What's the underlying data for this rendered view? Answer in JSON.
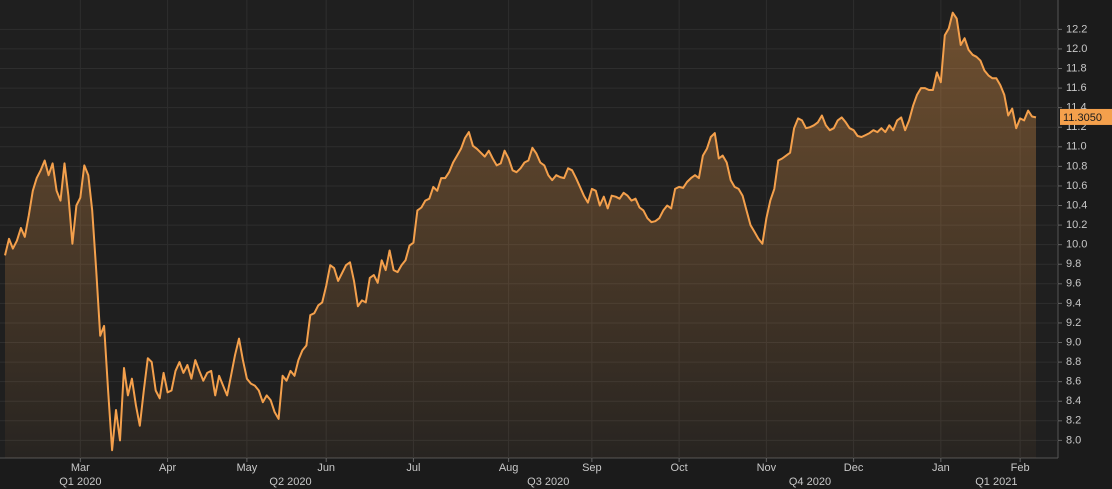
{
  "chart_data": {
    "type": "line",
    "series": [
      {
        "color": "#f4a04c",
        "values": [
          9.89,
          10.06,
          9.96,
          10.04,
          10.17,
          10.08,
          10.3,
          10.55,
          10.68,
          10.76,
          10.86,
          10.71,
          10.83,
          10.55,
          10.45,
          10.83,
          10.5,
          10.01,
          10.4,
          10.48,
          10.81,
          10.71,
          10.35,
          9.74,
          9.07,
          9.17,
          8.51,
          7.9,
          8.31,
          8.0,
          8.74,
          8.46,
          8.63,
          8.36,
          8.15,
          8.51,
          8.84,
          8.8,
          8.51,
          8.43,
          8.69,
          8.49,
          8.51,
          8.71,
          8.8,
          8.69,
          8.77,
          8.63,
          8.82,
          8.71,
          8.61,
          8.69,
          8.71,
          8.46,
          8.66,
          8.56,
          8.46,
          8.66,
          8.87,
          9.04,
          8.82,
          8.63,
          8.58,
          8.56,
          8.51,
          8.39,
          8.46,
          8.41,
          8.29,
          8.22,
          8.66,
          8.61,
          8.71,
          8.66,
          8.82,
          8.92,
          8.97,
          9.28,
          9.3,
          9.38,
          9.41,
          9.58,
          9.79,
          9.76,
          9.63,
          9.71,
          9.79,
          9.82,
          9.63,
          9.37,
          9.43,
          9.41,
          9.66,
          9.69,
          9.61,
          9.84,
          9.74,
          9.94,
          9.74,
          9.72,
          9.79,
          9.84,
          9.99,
          10.02,
          10.35,
          10.38,
          10.45,
          10.47,
          10.59,
          10.55,
          10.68,
          10.68,
          10.74,
          10.84,
          10.91,
          10.98,
          11.09,
          11.15,
          11.01,
          10.98,
          10.94,
          10.9,
          10.96,
          10.88,
          10.81,
          10.83,
          10.96,
          10.88,
          10.76,
          10.74,
          10.78,
          10.84,
          10.86,
          10.99,
          10.93,
          10.84,
          10.81,
          10.71,
          10.66,
          10.71,
          10.69,
          10.68,
          10.78,
          10.76,
          10.68,
          10.59,
          10.5,
          10.43,
          10.57,
          10.55,
          10.4,
          10.49,
          10.37,
          10.5,
          10.49,
          10.47,
          10.53,
          10.5,
          10.45,
          10.47,
          10.38,
          10.35,
          10.27,
          10.23,
          10.24,
          10.27,
          10.35,
          10.4,
          10.37,
          10.57,
          10.59,
          10.58,
          10.64,
          10.68,
          10.71,
          10.68,
          10.91,
          10.98,
          11.1,
          11.14,
          10.88,
          10.91,
          10.84,
          10.66,
          10.59,
          10.57,
          10.5,
          10.35,
          10.2,
          10.13,
          10.06,
          10.01,
          10.27,
          10.45,
          10.57,
          10.86,
          10.88,
          10.91,
          10.94,
          11.19,
          11.29,
          11.27,
          11.19,
          11.2,
          11.22,
          11.25,
          11.32,
          11.22,
          11.17,
          11.19,
          11.27,
          11.3,
          11.25,
          11.19,
          11.17,
          11.11,
          11.1,
          11.12,
          11.14,
          11.17,
          11.15,
          11.19,
          11.15,
          11.22,
          11.17,
          11.27,
          11.3,
          11.17,
          11.27,
          11.42,
          11.53,
          11.6,
          11.6,
          11.58,
          11.58,
          11.76,
          11.66,
          12.14,
          12.21,
          12.37,
          12.31,
          12.04,
          12.11,
          11.99,
          11.94,
          11.92,
          11.88,
          11.78,
          11.73,
          11.7,
          11.7,
          11.63,
          11.53,
          11.32,
          11.39,
          11.19,
          11.29,
          11.27,
          11.37,
          11.31,
          11.3
        ]
      }
    ],
    "last_price": {
      "value": 11.305,
      "label": "11.3050"
    },
    "xlim": [
      0,
      260
    ],
    "xticks": [
      {
        "value": 19,
        "label": "Mar"
      },
      {
        "value": 41,
        "label": "Apr"
      },
      {
        "value": 61,
        "label": "May"
      },
      {
        "value": 81,
        "label": "Jun"
      },
      {
        "value": 103,
        "label": "Jul"
      },
      {
        "value": 127,
        "label": "Aug"
      },
      {
        "value": 148,
        "label": "Sep"
      },
      {
        "value": 170,
        "label": "Oct"
      },
      {
        "value": 192,
        "label": "Nov"
      },
      {
        "value": 214,
        "label": "Dec"
      },
      {
        "value": 236,
        "label": "Jan"
      },
      {
        "value": 256,
        "label": "Feb"
      }
    ],
    "quarter_ticks": [
      {
        "value": 19,
        "label": "Q1 2020"
      },
      {
        "value": 72,
        "label": "Q2 2020"
      },
      {
        "value": 137,
        "label": "Q3 2020"
      },
      {
        "value": 203,
        "label": "Q4 2020"
      },
      {
        "value": 250,
        "label": "Q1 2021"
      }
    ],
    "ylim": [
      7.82,
      12.5
    ],
    "yticks": [
      {
        "value": 8,
        "label": "8.0"
      },
      8.2,
      8.4,
      8.6,
      8.8,
      {
        "value": 9,
        "label": "9.0"
      },
      9.2,
      9.4,
      9.6,
      9.8,
      {
        "value": 10,
        "label": "10.0"
      },
      10.2,
      10.4,
      10.6,
      10.8,
      {
        "value": 11,
        "label": "11.0"
      },
      11.2,
      11.4,
      11.6,
      11.8,
      {
        "value": 12,
        "label": "12.0"
      },
      12.2
    ],
    "grid": true
  }
}
